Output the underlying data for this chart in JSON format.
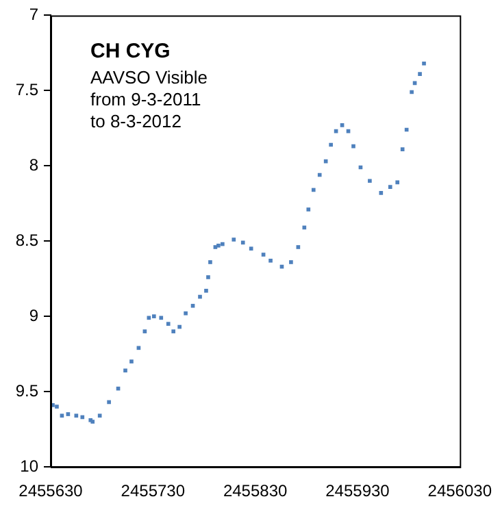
{
  "chart_data": {
    "type": "scatter",
    "title": "CH CYG",
    "annotations": [
      "AAVSO Visible",
      "from 9-3-2011",
      "to 8-3-2012"
    ],
    "x": [
      2455632,
      2455636,
      2455641,
      2455647,
      2455655,
      2455661,
      2455669,
      2455671,
      2455678,
      2455687,
      2455696,
      2455703,
      2455709,
      2455716,
      2455722,
      2455726,
      2455731,
      2455738,
      2455745,
      2455750,
      2455756,
      2455762,
      2455769,
      2455776,
      2455782,
      2455784,
      2455786,
      2455791,
      2455794,
      2455798,
      2455809,
      2455818,
      2455826,
      2455838,
      2455845,
      2455856,
      2455865,
      2455872,
      2455878,
      2455882,
      2455887,
      2455893,
      2455899,
      2455904,
      2455909,
      2455915,
      2455921,
      2455926,
      2455933,
      2455942,
      2455953,
      2455962,
      2455969,
      2455974,
      2455978,
      2455983,
      2455986,
      2455991,
      2455995
    ],
    "values": [
      9.59,
      9.6,
      9.66,
      9.65,
      9.66,
      9.67,
      9.69,
      9.7,
      9.66,
      9.57,
      9.48,
      9.36,
      9.3,
      9.21,
      9.1,
      9.01,
      9.0,
      9.01,
      9.05,
      9.1,
      9.07,
      8.98,
      8.93,
      8.87,
      8.83,
      8.74,
      8.64,
      8.54,
      8.53,
      8.52,
      8.49,
      8.51,
      8.55,
      8.59,
      8.63,
      8.67,
      8.64,
      8.54,
      8.41,
      8.29,
      8.16,
      8.06,
      7.97,
      7.86,
      7.77,
      7.73,
      7.77,
      7.87,
      8.01,
      8.1,
      8.18,
      8.14,
      8.11,
      7.89,
      7.76,
      7.51,
      7.45,
      7.39,
      7.32
    ],
    "color": "#4f81bd",
    "marker": "square",
    "xlim": [
      2455630,
      2456030
    ],
    "xticks": [
      2455630,
      2455730,
      2455830,
      2455930,
      2456030
    ],
    "ylim": [
      10,
      7
    ],
    "yticks": [
      7,
      7.5,
      8,
      8.5,
      9,
      9.5,
      10
    ],
    "grid": false,
    "legend": false
  }
}
